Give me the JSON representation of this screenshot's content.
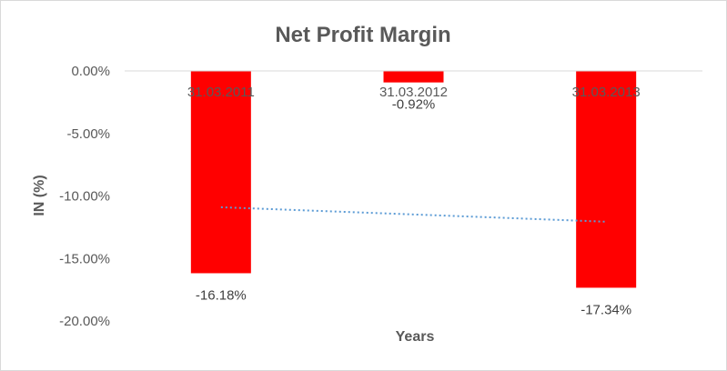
{
  "chart_data": {
    "type": "bar",
    "title": "Net Profit Margin",
    "xlabel": "Years",
    "ylabel": "IN (%)",
    "categories": [
      "31.03.2011",
      "31.03.2012",
      "31.03.2013"
    ],
    "values": [
      -16.18,
      -0.92,
      -17.34
    ],
    "data_labels": [
      "-16.18%",
      "-0.92%",
      "-17.34%"
    ],
    "ylim": [
      -20,
      0
    ],
    "yticks": [
      0,
      -5,
      -10,
      -15,
      -20
    ],
    "ytick_labels": [
      "0.00%",
      "-5.00%",
      "-10.00%",
      "-15.00%",
      "-20.00%"
    ],
    "grid": false,
    "legend": "none",
    "trendline": {
      "type": "linear",
      "style": "dotted",
      "color": "#5b9bd5"
    },
    "colors": {
      "bar": "#ff0000",
      "axis": "#d9d9d9",
      "text": "#595959"
    }
  }
}
